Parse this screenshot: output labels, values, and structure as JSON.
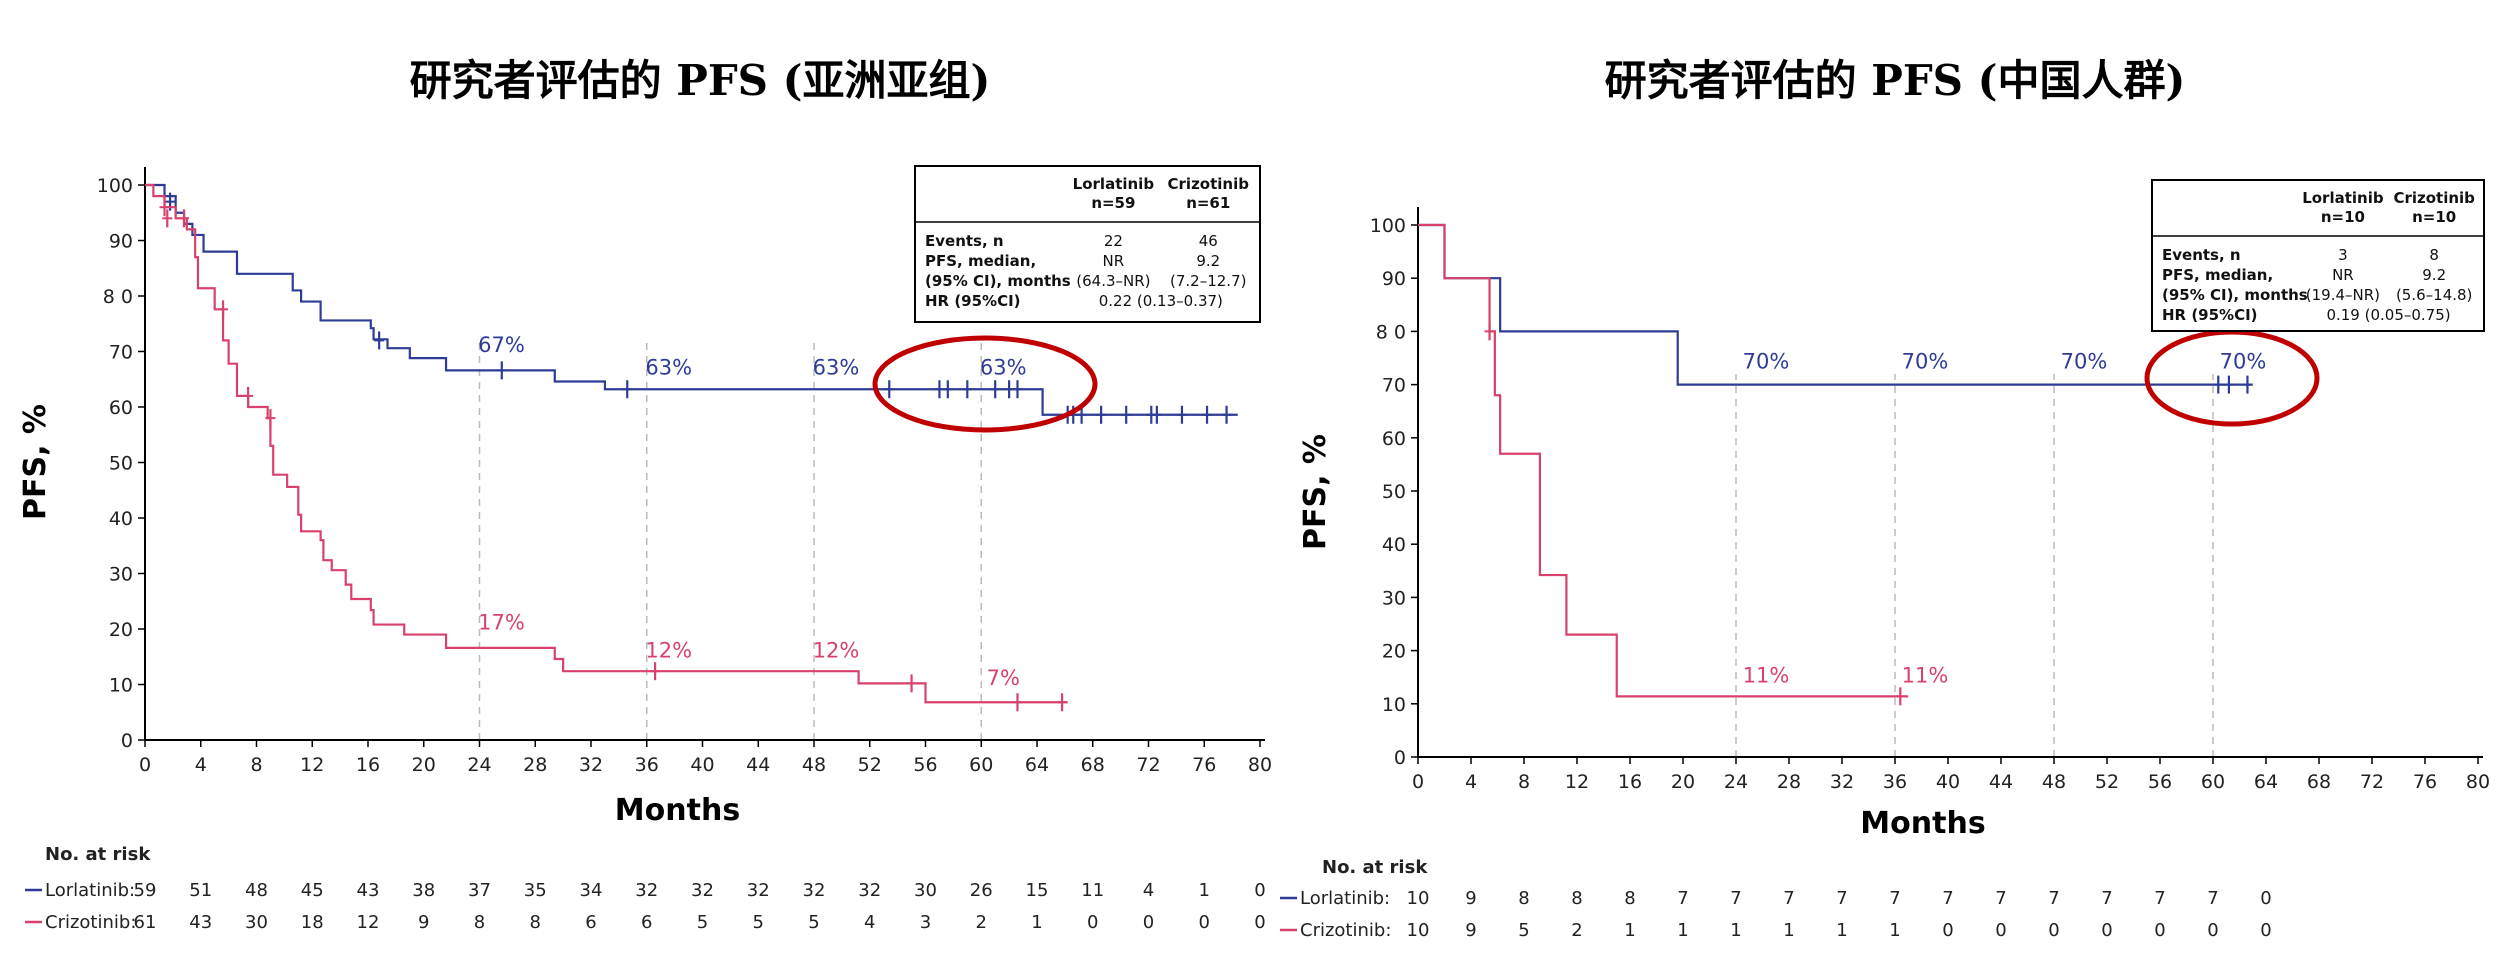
{
  "colors": {
    "lorlatinib": "#2e3c96",
    "crizotinib": "#d9416d",
    "highlight": "#c00000",
    "guide": "#bbbbbb"
  },
  "chart_data": [
    {
      "type": "line",
      "title": "研究者评估的 PFS (亚洲亚组)",
      "xlabel": "Months",
      "ylabel": "PFS, %",
      "xlim": [
        0,
        80
      ],
      "ylim": [
        0,
        100
      ],
      "x_ticks": [
        0,
        4,
        8,
        12,
        16,
        20,
        24,
        28,
        32,
        36,
        40,
        44,
        48,
        52,
        56,
        60,
        64,
        68,
        72,
        76,
        80
      ],
      "y_ticks": [
        "0",
        "10",
        "20",
        "30",
        "40",
        "50",
        "60",
        "70",
        "8 0",
        "90",
        "100"
      ],
      "series": [
        {
          "name": "Lorlatinib",
          "color": "#2e3c96",
          "steps": [
            [
              0,
              100
            ],
            [
              1.4,
              98
            ],
            [
              2.2,
              95
            ],
            [
              2.8,
              93
            ],
            [
              3.4,
              91
            ],
            [
              4.2,
              88
            ],
            [
              6.6,
              84
            ],
            [
              10.6,
              81
            ],
            [
              11.2,
              79
            ],
            [
              12.6,
              75.6
            ],
            [
              16.2,
              74.2
            ],
            [
              16.4,
              72.2
            ],
            [
              17.4,
              70.6
            ],
            [
              19,
              68.8
            ],
            [
              21.6,
              66.6
            ],
            [
              29.4,
              64.6
            ],
            [
              33,
              63.2
            ],
            [
              64.4,
              58.6
            ],
            [
              78.4,
              58.6
            ]
          ],
          "censor": [
            [
              1.8,
              97
            ],
            [
              16.8,
              72
            ],
            [
              25.6,
              66.6
            ],
            [
              34.6,
              63.2
            ],
            [
              53.4,
              63.2
            ],
            [
              57,
              63.2
            ],
            [
              57.6,
              63.2
            ],
            [
              59,
              63.2
            ],
            [
              61,
              63.2
            ],
            [
              62,
              63.2
            ],
            [
              62.6,
              63.2
            ],
            [
              66.2,
              58.6
            ],
            [
              66.6,
              58.6
            ],
            [
              67.2,
              58.6
            ],
            [
              68.6,
              58.6
            ],
            [
              70.4,
              58.6
            ],
            [
              72.2,
              58.6
            ],
            [
              72.6,
              58.6
            ],
            [
              74.4,
              58.6
            ],
            [
              76.2,
              58.6
            ],
            [
              77.6,
              58.6
            ]
          ],
          "annotations": [
            {
              "x": 24,
              "y": 67,
              "label": "67%"
            },
            {
              "x": 36,
              "y": 63,
              "label": "63%"
            },
            {
              "x": 48,
              "y": 63,
              "label": "63%"
            },
            {
              "x": 60,
              "y": 63,
              "label": "63%"
            }
          ],
          "at_risk": [
            59,
            51,
            48,
            45,
            43,
            38,
            37,
            35,
            34,
            32,
            32,
            32,
            32,
            32,
            30,
            26,
            15,
            11,
            4,
            1,
            0
          ]
        },
        {
          "name": "Crizotinib",
          "color": "#d9416d",
          "steps": [
            [
              0,
              100
            ],
            [
              0.6,
              98
            ],
            [
              1.4,
              96
            ],
            [
              2.2,
              94
            ],
            [
              3,
              92
            ],
            [
              3.6,
              87
            ],
            [
              3.8,
              81.4
            ],
            [
              5,
              77.6
            ],
            [
              5.6,
              72
            ],
            [
              6,
              67.8
            ],
            [
              6.6,
              62
            ],
            [
              7.4,
              60
            ],
            [
              8.8,
              58
            ],
            [
              9,
              53
            ],
            [
              9.2,
              47.8
            ],
            [
              10.2,
              45.6
            ],
            [
              11,
              40.6
            ],
            [
              11.2,
              37.6
            ],
            [
              12.6,
              36
            ],
            [
              12.8,
              32.4
            ],
            [
              13.4,
              30.6
            ],
            [
              14.4,
              28
            ],
            [
              14.8,
              25.4
            ],
            [
              16.2,
              23.4
            ],
            [
              16.4,
              20.8
            ],
            [
              18.6,
              19
            ],
            [
              21.6,
              16.6
            ],
            [
              29.4,
              14.6
            ],
            [
              30,
              12.4
            ],
            [
              51.2,
              10.2
            ],
            [
              56,
              6.8
            ],
            [
              66.2,
              6.8
            ]
          ],
          "censor": [
            [
              1.4,
              96
            ],
            [
              1.6,
              94
            ],
            [
              2.8,
              94
            ],
            [
              5.6,
              77.6
            ],
            [
              7.4,
              62
            ],
            [
              9,
              58
            ],
            [
              36.6,
              12.4
            ],
            [
              55,
              10.2
            ],
            [
              62.6,
              6.8
            ],
            [
              65.8,
              6.8
            ]
          ],
          "annotations": [
            {
              "x": 24,
              "y": 17,
              "label": "17%"
            },
            {
              "x": 36,
              "y": 12,
              "label": "12%"
            },
            {
              "x": 48,
              "y": 12,
              "label": "12%"
            },
            {
              "x": 60,
              "y": 7,
              "label": "7%"
            }
          ],
          "at_risk": [
            61,
            43,
            30,
            18,
            12,
            9,
            8,
            8,
            6,
            6,
            5,
            5,
            5,
            4,
            3,
            2,
            1,
            0,
            0,
            0,
            0
          ]
        }
      ],
      "table": {
        "header": [
          "",
          "Lorlatinib\nn=59",
          "Crizotinib\nn=61"
        ],
        "rows": [
          [
            "Events, n",
            "22",
            "46"
          ],
          [
            "PFS, median,",
            "NR",
            "9.2"
          ],
          [
            "(95% CI), months",
            "(64.3–NR)",
            "(7.2–12.7)"
          ],
          [
            "HR (95%CI)",
            "0.22 (0.13–0.37)",
            ""
          ]
        ]
      },
      "at_risk_title": "No. at risk",
      "at_risk_labels": [
        "Lorlatinib:",
        "Crizotinib:"
      ]
    },
    {
      "type": "line",
      "title": "研究者评估的 PFS (中国人群)",
      "xlabel": "Months",
      "ylabel": "PFS, %",
      "xlim": [
        0,
        80
      ],
      "ylim": [
        0,
        100
      ],
      "x_ticks": [
        0,
        4,
        8,
        12,
        16,
        20,
        24,
        28,
        32,
        36,
        40,
        44,
        48,
        52,
        56,
        60,
        64,
        68,
        72,
        76,
        80
      ],
      "y_ticks": [
        "0",
        "10",
        "20",
        "30",
        "40",
        "50",
        "60",
        "70",
        "8 0",
        "90",
        "100"
      ],
      "series": [
        {
          "name": "Lorlatinib",
          "color": "#2e3c96",
          "steps": [
            [
              0,
              100
            ],
            [
              2,
              90
            ],
            [
              6.2,
              80
            ],
            [
              19.6,
              70
            ],
            [
              63,
              70
            ]
          ],
          "censor": [
            [
              60.4,
              70
            ],
            [
              61.2,
              70
            ],
            [
              62.6,
              70
            ]
          ],
          "annotations": [
            {
              "x": 24,
              "y": 70,
              "label": "70%"
            },
            {
              "x": 36,
              "y": 70,
              "label": "70%"
            },
            {
              "x": 48,
              "y": 70,
              "label": "70%"
            },
            {
              "x": 60,
              "y": 70,
              "label": "70%"
            }
          ],
          "at_risk": [
            10,
            9,
            8,
            8,
            8,
            7,
            7,
            7,
            7,
            7,
            7,
            7,
            7,
            7,
            7,
            7,
            0
          ]
        },
        {
          "name": "Crizotinib",
          "color": "#d9416d",
          "steps": [
            [
              0,
              100
            ],
            [
              2,
              90
            ],
            [
              5.4,
              80
            ],
            [
              5.8,
              68
            ],
            [
              6.2,
              57
            ],
            [
              9.2,
              34.2
            ],
            [
              11.2,
              23
            ],
            [
              15,
              11.4
            ],
            [
              37,
              11.4
            ]
          ],
          "censor": [
            [
              5.4,
              80
            ],
            [
              36.4,
              11.4
            ]
          ],
          "annotations": [
            {
              "x": 24,
              "y": 11,
              "label": "11%"
            },
            {
              "x": 36,
              "y": 11,
              "label": "11%"
            }
          ],
          "at_risk": [
            10,
            9,
            5,
            2,
            1,
            1,
            1,
            1,
            1,
            1,
            0,
            0,
            0,
            0,
            0,
            0,
            0
          ]
        }
      ],
      "table": {
        "header": [
          "",
          "Lorlatinib\nn=10",
          "Crizotinib\nn=10"
        ],
        "rows": [
          [
            "Events, n",
            "3",
            "8"
          ],
          [
            "PFS, median,",
            "NR",
            "9.2"
          ],
          [
            "(95% CI), months",
            "(19.4–NR)",
            "(5.6–14.8)"
          ],
          [
            "HR (95%CI)",
            "0.19 (0.05–0.75)",
            ""
          ]
        ]
      },
      "at_risk_title": "No. at risk",
      "at_risk_labels": [
        "Lorlatinib:",
        "Crizotinib:"
      ]
    }
  ]
}
